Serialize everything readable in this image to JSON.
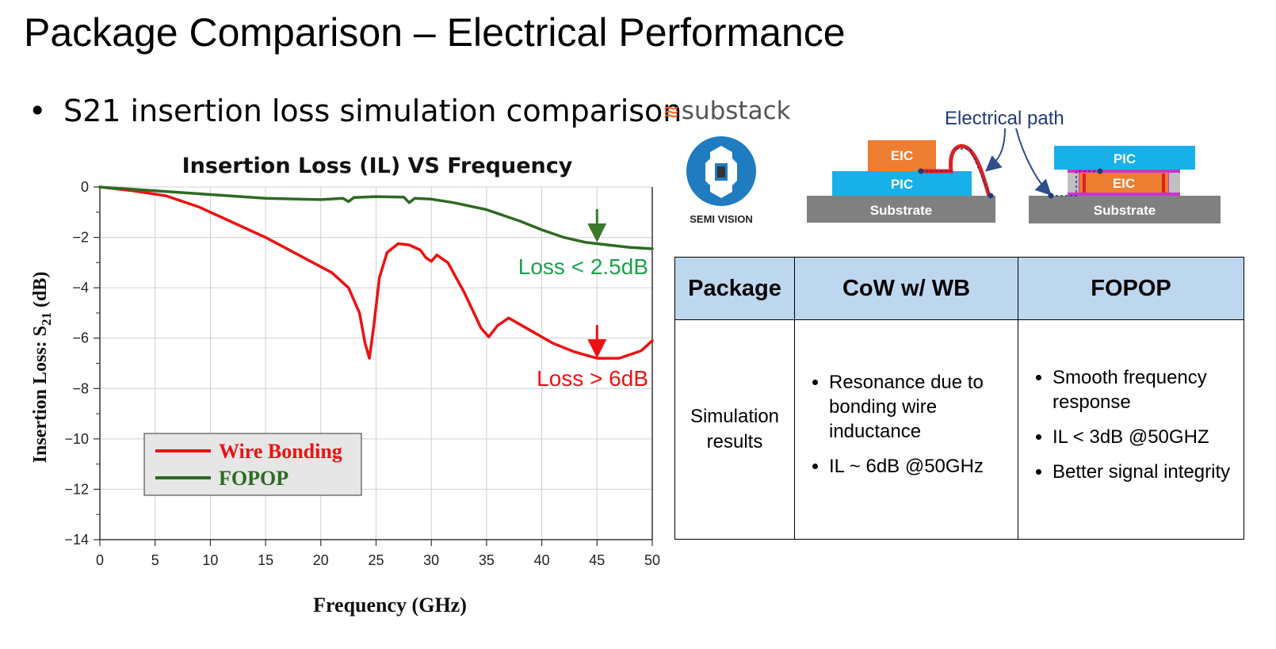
{
  "slide": {
    "title": "Package Comparison – Electrical Performance",
    "bullet": "S21 insertion loss simulation comparison"
  },
  "brand": {
    "name": "substack",
    "color": "#ff6719"
  },
  "logo": {
    "text": "SEMI VISION",
    "color": "#1f7cc0"
  },
  "diagram": {
    "path_label": "Electrical path",
    "left": {
      "eic": "EIC",
      "pic": "PIC",
      "substrate": "Substrate"
    },
    "right": {
      "pic": "PIC",
      "eic": "EIC",
      "substrate": "Substrate"
    }
  },
  "table": {
    "headers": [
      "Package",
      "CoW w/ WB",
      "FOPOP"
    ],
    "row_label": "Simulation results",
    "cow_points": [
      "Resonance due to bonding wire inductance",
      "IL ~ 6dB @50GHz"
    ],
    "fopop_points": [
      "Smooth frequency response",
      "IL < 3dB @50GHZ",
      "Better signal integrity"
    ]
  },
  "chart_data": {
    "type": "line",
    "title": "Insertion Loss (IL) VS Frequency",
    "xlabel": "Frequency (GHz)",
    "ylabel_main": "Insertion Loss: S",
    "ylabel_sub": "21",
    "ylabel_unit": " (dB)",
    "xlim": [
      0,
      50
    ],
    "ylim": [
      -14,
      0
    ],
    "x_ticks": [
      0,
      5,
      10,
      15,
      20,
      25,
      30,
      35,
      40,
      45,
      50
    ],
    "y_ticks": [
      0,
      -2,
      -4,
      -6,
      -8,
      -10,
      -12,
      -14
    ],
    "grid": true,
    "legend_position": "bottom-left",
    "series": [
      {
        "name": "Wire Bonding",
        "color": "#ee1111",
        "x": [
          0,
          3,
          6,
          9,
          12,
          15,
          18,
          21,
          22.5,
          23.5,
          24,
          24.4,
          24.8,
          25.3,
          26,
          27,
          28,
          29,
          29.5,
          30,
          30.5,
          31.5,
          33,
          34.5,
          35.2,
          36,
          37,
          39,
          41,
          43,
          45,
          47,
          49,
          50
        ],
        "values": [
          0,
          -0.15,
          -0.35,
          -0.8,
          -1.4,
          -2.0,
          -2.7,
          -3.4,
          -4.0,
          -5.0,
          -6.2,
          -6.8,
          -5.5,
          -3.6,
          -2.6,
          -2.25,
          -2.3,
          -2.5,
          -2.8,
          -2.95,
          -2.7,
          -3.0,
          -4.2,
          -5.6,
          -5.95,
          -5.5,
          -5.2,
          -5.7,
          -6.2,
          -6.55,
          -6.8,
          -6.8,
          -6.5,
          -6.1
        ]
      },
      {
        "name": "FOPOP",
        "color": "#2d6a22",
        "x": [
          0,
          5,
          10,
          15,
          20,
          22,
          22.5,
          23,
          25,
          27.5,
          28,
          28.5,
          30,
          32,
          35,
          38,
          40,
          42,
          44,
          46,
          48,
          50
        ],
        "values": [
          0,
          -0.15,
          -0.3,
          -0.45,
          -0.5,
          -0.45,
          -0.58,
          -0.42,
          -0.38,
          -0.4,
          -0.62,
          -0.45,
          -0.48,
          -0.62,
          -0.9,
          -1.35,
          -1.7,
          -2.0,
          -2.2,
          -2.3,
          -2.4,
          -2.45
        ]
      }
    ],
    "annotations": [
      {
        "text": "Loss < 2.5dB",
        "color": "#1aa24a",
        "arrow_color": "#3a7a2a",
        "x": 45,
        "y": -2.2
      },
      {
        "text": "Loss > 6dB",
        "color": "#ee1111",
        "arrow_color": "#ee1111",
        "x": 45,
        "y": -6.8
      }
    ]
  }
}
